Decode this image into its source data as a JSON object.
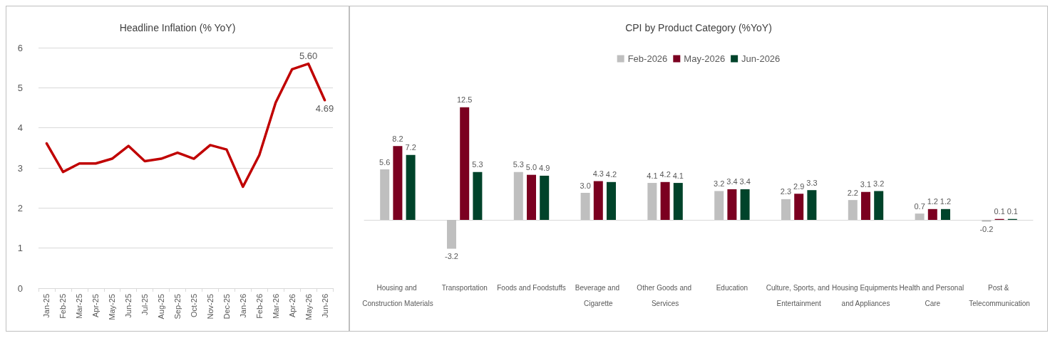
{
  "chart_data": [
    {
      "type": "line",
      "title": "Headline Inflation (% YoY)",
      "categories": [
        "Jan-25",
        "Feb-25",
        "Mar-25",
        "Apr-25",
        "May-25",
        "Jun-25",
        "Jul-25",
        "Aug-25",
        "Sep-25",
        "Oct-25",
        "Nov-25",
        "Dec-25",
        "Jan-26",
        "Feb-26",
        "Mar-26",
        "Apr-26",
        "May-26",
        "Jun-26"
      ],
      "series": [
        {
          "color": "#c00000",
          "values": [
            3.61,
            2.9,
            3.11,
            3.11,
            3.23,
            3.55,
            3.17,
            3.23,
            3.38,
            3.23,
            3.57,
            3.46,
            2.53,
            3.32,
            4.63,
            5.46,
            5.6,
            4.69
          ],
          "value_labels": [
            null,
            null,
            null,
            null,
            null,
            null,
            null,
            null,
            null,
            null,
            null,
            null,
            null,
            null,
            null,
            null,
            "5.60",
            "4.69"
          ]
        }
      ],
      "ylim": [
        0,
        6
      ],
      "yticks": [
        0,
        1,
        2,
        3,
        4,
        5,
        6
      ],
      "grid": "y",
      "legend": false,
      "marker": "none",
      "line_style": "solid"
    },
    {
      "type": "bar",
      "title": "CPI by Product Category (%YoY)",
      "categories": [
        "Housing and Construction Materials",
        "Transportation",
        "Foods and Foodstuffs",
        "Beverage and Cigarette",
        "Other Goods and Services",
        "Education",
        "Culture, Sports, and Entertainment",
        "Housing Equipments and Appliances",
        "Health and Personal Care",
        "Post & Telecommunication"
      ],
      "series": [
        {
          "name": "Feb-2026",
          "color": "#bfbfbf",
          "values": [
            5.6,
            -3.2,
            5.3,
            3.0,
            4.1,
            3.2,
            2.3,
            2.2,
            0.7,
            -0.2
          ],
          "value_labels": [
            "5.6",
            "-3.2",
            "5.3",
            "3.0",
            "4.1",
            "3.2",
            "2.3",
            "2.2",
            "0.7",
            "-0.2"
          ]
        },
        {
          "name": "May-2026",
          "color": "#7b0020",
          "values": [
            8.2,
            12.5,
            5.0,
            4.3,
            4.2,
            3.4,
            2.9,
            3.1,
            1.2,
            0.1
          ],
          "value_labels": [
            "8.2",
            "12.5",
            "5.0",
            "4.3",
            "4.2",
            "3.4",
            "2.9",
            "3.1",
            "1.2",
            "0.1"
          ]
        },
        {
          "name": "Jun-2026",
          "color": "#00432a",
          "values": [
            7.2,
            5.3,
            4.9,
            4.2,
            4.1,
            3.4,
            3.3,
            3.2,
            1.2,
            0.1
          ],
          "value_labels": [
            "7.2",
            "5.3",
            "4.9",
            "4.2",
            "4.1",
            "3.4",
            "3.3",
            "3.2",
            "1.2",
            "0.1"
          ]
        }
      ],
      "legend": "top",
      "grid": false,
      "tick_labels": "x"
    }
  ]
}
